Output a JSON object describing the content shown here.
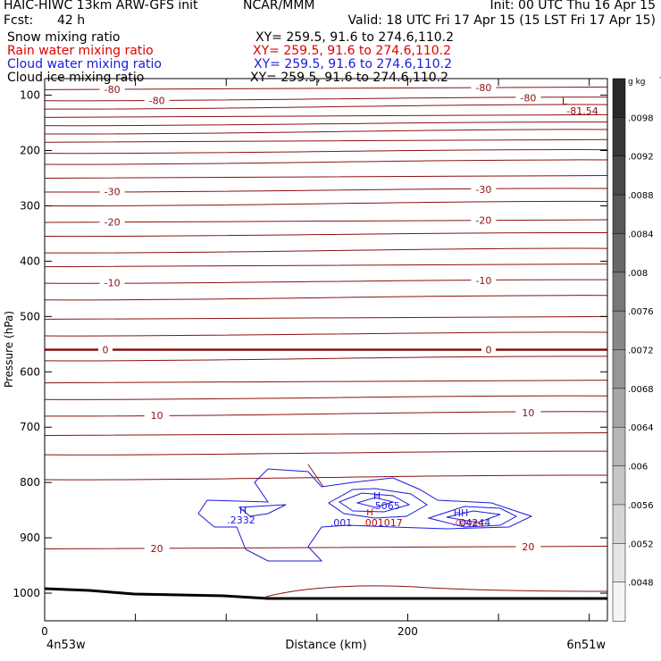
{
  "header": {
    "title_left": "HAIC-HIWC 13km ARW-GFS init",
    "org": "NCAR/MMM",
    "init": "Init: 00 UTC Thu 16 Apr 15",
    "fcst_label": "Fcst:",
    "fcst_value": "42 h",
    "valid": "Valid: 18 UTC Fri 17 Apr 15 (15 LST Fri 17 Apr 15)",
    "fields": [
      {
        "name": "Snow mixing ratio",
        "xy": "XY= 259.5, 91.6 to 274.6,110.2",
        "color": "#000000"
      },
      {
        "name": "Rain water mixing ratio",
        "xy": "XY= 259.5, 91.6 to 274.6,110.2",
        "color": "#e00000"
      },
      {
        "name": "Cloud water mixing ratio",
        "xy": "XY= 259.5, 91.6 to 274.6,110.2",
        "color": "#1a1adc"
      },
      {
        "name": "Cloud ice mixing ratio",
        "xy": "XY= 259.5, 91.6 to 274.6,110.2",
        "color": "#000000"
      }
    ]
  },
  "chart_data": {
    "type": "cross-section contour",
    "xlabel": "Distance (km)",
    "ylabel": "Pressure (hPa)",
    "xlim": [
      0,
      310
    ],
    "ylim": [
      1050,
      70
    ],
    "xticks": [
      0,
      200
    ],
    "yticks": [
      100,
      200,
      300,
      400,
      500,
      600,
      700,
      800,
      900,
      1000
    ],
    "endpoint_left": "4n53w",
    "endpoint_right": "6n51w",
    "colorbar": {
      "unit": "g kg",
      "unit_exp": "-1",
      "labels": [
        ".0098",
        ".0092",
        ".0088",
        ".0084",
        ".008",
        ".0076",
        ".0072",
        ".0068",
        ".0064",
        ".006",
        ".0056",
        ".0052",
        ".0048"
      ]
    },
    "temperature_contours_color": "#8b1010",
    "temperature_levels": [
      {
        "p": 90,
        "label": "-80"
      },
      {
        "p": 110,
        "label": "-80"
      },
      {
        "p": 125,
        "label": ""
      },
      {
        "p": 140,
        "label": ""
      },
      {
        "p": 155,
        "label": ""
      },
      {
        "p": 170,
        "label": ""
      },
      {
        "p": 185,
        "label": ""
      },
      {
        "p": 205,
        "label": ""
      },
      {
        "p": 225,
        "label": ""
      },
      {
        "p": 250,
        "label": ""
      },
      {
        "p": 275,
        "label": "-30"
      },
      {
        "p": 300,
        "label": ""
      },
      {
        "p": 330,
        "label": "-20"
      },
      {
        "p": 355,
        "label": ""
      },
      {
        "p": 385,
        "label": ""
      },
      {
        "p": 410,
        "label": ""
      },
      {
        "p": 440,
        "label": "-10"
      },
      {
        "p": 470,
        "label": ""
      },
      {
        "p": 505,
        "label": ""
      },
      {
        "p": 535,
        "label": ""
      },
      {
        "p": 580,
        "label": ""
      },
      {
        "p": 620,
        "label": ""
      },
      {
        "p": 650,
        "label": ""
      },
      {
        "p": 680,
        "label": "10"
      },
      {
        "p": 715,
        "label": ""
      },
      {
        "p": 750,
        "label": ""
      },
      {
        "p": 795,
        "label": ""
      },
      {
        "p": 920,
        "label": "20"
      }
    ],
    "zero_isotherm_p": 560,
    "low_marker": {
      "label": "L",
      "value": "-81.54"
    },
    "cloud_water_labels": [
      {
        "h": "H",
        "value": ".2332"
      },
      {
        "h": "H",
        "value": ".5065"
      },
      {
        "h": "HH",
        "value": ".04244"
      },
      {
        "h": "",
        "value": ".001"
      }
    ],
    "rain_labels": [
      {
        "h": "H",
        "value": ".001017"
      },
      {
        "h": "",
        "value": ".00044"
      }
    ]
  }
}
